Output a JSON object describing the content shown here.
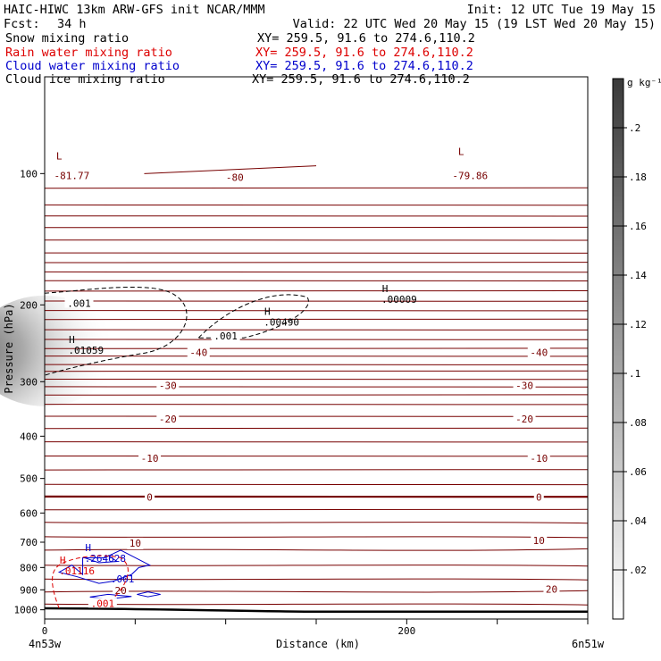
{
  "header": {
    "line1_left": "HAIC-HIWC 13km ARW-GFS init   NCAR/MMM",
    "line1_right": "Init: 12 UTC Tue 19 May 15",
    "fcst_label": "Fcst:",
    "fcst_value": "34 h",
    "valid": "Valid: 22 UTC Wed 20 May 15 (19 LST Wed 20 May 15)",
    "fields": [
      {
        "name": "Snow mixing ratio",
        "xy": "XY= 259.5, 91.6 to 274.6,110.2",
        "color": "#000000"
      },
      {
        "name": "Rain water mixing ratio",
        "xy": "XY= 259.5, 91.6 to 274.6,110.2",
        "color": "#dd0000"
      },
      {
        "name": "Cloud water mixing ratio",
        "xy": "XY= 259.5, 91.6 to 274.6,110.2",
        "color": "#0000cc"
      },
      {
        "name": "Cloud ice mixing ratio",
        "xy": "XY= 259.5, 91.6 to 274.6,110.2",
        "color": "#000000"
      }
    ]
  },
  "chart_data": {
    "type": "contour",
    "ylabel": "Pressure (hPa)",
    "xlabel": "Distance (km)",
    "x_left_label": "4n53w",
    "x_right_label": "6n51w",
    "xlim": [
      0,
      300
    ],
    "ylim": [
      1050,
      60
    ],
    "y_scale": "log-pressure",
    "y_ticks": [
      100,
      200,
      300,
      400,
      500,
      600,
      700,
      800,
      900,
      1000
    ],
    "x_ticks": [
      0,
      50,
      100,
      150,
      200,
      250,
      300
    ],
    "x_tick_labels": [
      {
        "x": 0,
        "label": "0"
      },
      {
        "x": 200,
        "label": "200"
      }
    ],
    "colorbar": {
      "unit": "g kg⁻¹",
      "ticks": [
        ".02",
        ".04",
        ".06",
        ".08",
        ".1",
        ".12",
        ".14",
        ".16",
        ".18",
        ".2"
      ],
      "vmin": 0,
      "vmax": 0.22
    },
    "temperature_contours": {
      "color": "#770000",
      "interval_c": 5,
      "labels": [
        {
          "text": "-81.77",
          "x": 15,
          "p": 101
        },
        {
          "text": "-80",
          "x": 105,
          "p": 102
        },
        {
          "text": "-79.86",
          "x": 235,
          "p": 101
        },
        {
          "text": "L",
          "x": 8,
          "p": 91
        },
        {
          "text": "L",
          "x": 230,
          "p": 89
        },
        {
          "text": "-40",
          "x": 85,
          "p": 257
        },
        {
          "text": "-40",
          "x": 273,
          "p": 257
        },
        {
          "text": "-30",
          "x": 68,
          "p": 306
        },
        {
          "text": "-30",
          "x": 265,
          "p": 306
        },
        {
          "text": "-20",
          "x": 68,
          "p": 365
        },
        {
          "text": "-20",
          "x": 265,
          "p": 365
        },
        {
          "text": "-10",
          "x": 58,
          "p": 449
        },
        {
          "text": "-10",
          "x": 273,
          "p": 449
        },
        {
          "text": "0",
          "x": 58,
          "p": 551
        },
        {
          "text": "0",
          "x": 273,
          "p": 551
        },
        {
          "text": "10",
          "x": 50,
          "p": 703
        },
        {
          "text": "10",
          "x": 273,
          "p": 693
        },
        {
          "text": "20",
          "x": 42,
          "p": 902
        },
        {
          "text": "20",
          "x": 280,
          "p": 896
        }
      ]
    },
    "snow_maxima": [
      {
        "label": "H",
        "value": ".01059",
        "x": 15,
        "p": 259
      },
      {
        "label": "H",
        "value": ".00490",
        "x": 123,
        "p": 223
      },
      {
        "label": "H",
        "value": ".00009",
        "x": 188,
        "p": 198
      }
    ],
    "snow_contour_labels": [
      ".001",
      ".001"
    ],
    "cloud_water_maxima": [
      {
        "label": "H",
        "value": ".264628",
        "x": 24,
        "p": 777
      }
    ],
    "cloud_water_contour_labels": [
      ".001"
    ],
    "rain_maxima": [
      {
        "label": "H",
        "value": ".01116",
        "x": 8,
        "p": 829
      }
    ],
    "rain_contour_labels": [
      ".001"
    ]
  }
}
